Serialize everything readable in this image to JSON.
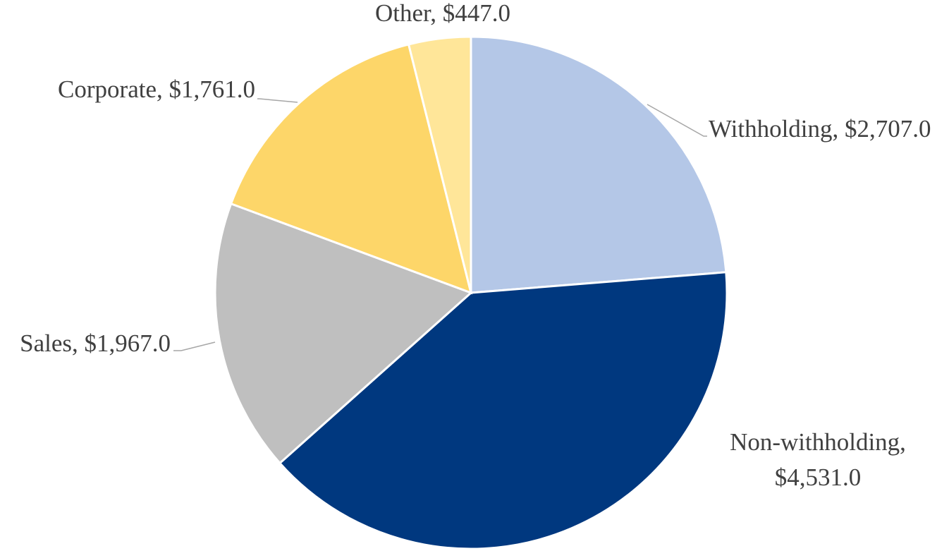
{
  "chart_data": {
    "type": "pie",
    "values": [
      2707,
      4531,
      1967,
      1761,
      447
    ],
    "value_labels": [
      "Withholding, $2,707.0",
      "Non-withholding, $4,531.0",
      "Sales, $1,967.0",
      "Corporate, $1,761.0",
      "Other, $447.0"
    ],
    "colors": [
      "#b4c7e7",
      "#00387f",
      "#bfbfbf",
      "#fdd669",
      "#ffe699"
    ]
  }
}
